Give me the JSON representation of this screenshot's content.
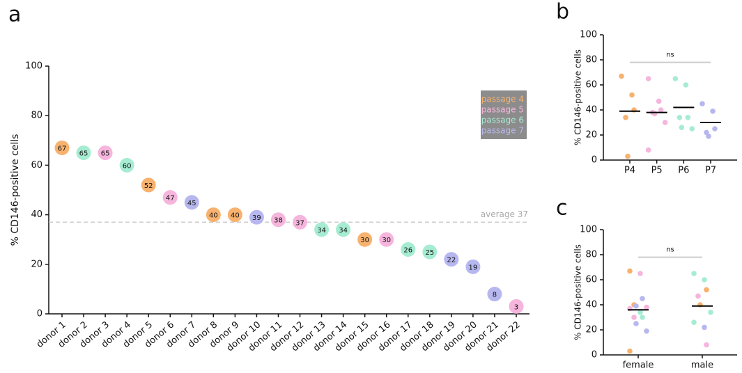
{
  "chart_data": [
    {
      "type": "dot",
      "label": "a",
      "ylabel": "% CD146-positive cells",
      "categories": [
        "donor 1",
        "donor 2",
        "donor 3",
        "donor 4",
        "donor 5",
        "donor 6",
        "donor 7",
        "donor 8",
        "donor 9",
        "donor 10",
        "donor 11",
        "donor 12",
        "donor 13",
        "donor 14",
        "donor 15",
        "donor 16",
        "donor 17",
        "donor 18",
        "donor 19",
        "donor 20",
        "donor 21",
        "donor 22"
      ],
      "series": [
        {
          "name": "passage 4",
          "color": "#f7b26f",
          "values": [
            67,
            null,
            null,
            null,
            52,
            null,
            null,
            40,
            40,
            null,
            null,
            null,
            null,
            null,
            30,
            null,
            null,
            null,
            null,
            null,
            null,
            null
          ]
        },
        {
          "name": "passage 5",
          "color": "#f5b5dc",
          "values": [
            null,
            null,
            65,
            null,
            null,
            47,
            null,
            null,
            null,
            null,
            38,
            37,
            null,
            null,
            null,
            30,
            null,
            null,
            null,
            null,
            null,
            3
          ]
        },
        {
          "name": "passage 6",
          "color": "#a6ecd3",
          "values": [
            null,
            65,
            null,
            60,
            null,
            null,
            null,
            null,
            null,
            null,
            null,
            null,
            34,
            34,
            null,
            null,
            26,
            25,
            null,
            null,
            null,
            null
          ]
        },
        {
          "name": "passage 7",
          "color": "#b7b7f0",
          "values": [
            null,
            null,
            null,
            null,
            null,
            null,
            45,
            null,
            null,
            39,
            null,
            null,
            null,
            null,
            null,
            null,
            null,
            null,
            22,
            19,
            8,
            null
          ]
        }
      ],
      "average": 37,
      "average_label": "average 37",
      "ylim": [
        0,
        100
      ],
      "yticks": [
        0,
        20,
        40,
        60,
        80,
        100
      ]
    },
    {
      "type": "strip",
      "label": "b",
      "ylabel": "% CD146-positive cells",
      "categories": [
        "P4",
        "P5",
        "P6",
        "P7"
      ],
      "points": [
        [
          67,
          52,
          40,
          34,
          3
        ],
        [
          65,
          47,
          40,
          38,
          37,
          30,
          8
        ],
        [
          65,
          60,
          34,
          34,
          26,
          25
        ],
        [
          45,
          39,
          25,
          22,
          19
        ]
      ],
      "point_colors": [
        [
          "#f7b26f",
          "#f7b26f",
          "#f7b26f",
          "#f7b26f",
          "#f7b26f"
        ],
        [
          "#f5b5dc",
          "#f5b5dc",
          "#f5b5dc",
          "#f5b5dc",
          "#f5b5dc",
          "#f5b5dc",
          "#f5b5dc"
        ],
        [
          "#a6ecd3",
          "#a6ecd3",
          "#a6ecd3",
          "#a6ecd3",
          "#a6ecd3",
          "#a6ecd3"
        ],
        [
          "#b7b7f0",
          "#b7b7f0",
          "#b7b7f0",
          "#b7b7f0",
          "#b7b7f0"
        ]
      ],
      "means": [
        39,
        38,
        42,
        30
      ],
      "annotation": "ns",
      "ylim": [
        0,
        100
      ],
      "yticks": [
        0,
        20,
        40,
        60,
        80,
        100
      ]
    },
    {
      "type": "strip",
      "label": "c",
      "ylabel": "% CD146-positive cells",
      "categories": [
        "female",
        "male"
      ],
      "points": [
        [
          67,
          65,
          45,
          40,
          39,
          38,
          37,
          34,
          30,
          30,
          25,
          19,
          3
        ],
        [
          65,
          60,
          52,
          47,
          40,
          34,
          26,
          22,
          8
        ]
      ],
      "point_colors": [
        [
          "#f7b26f",
          "#f5b5dc",
          "#b7b7f0",
          "#f7b26f",
          "#b7b7f0",
          "#f5b5dc",
          "#f5b5dc",
          "#a6ecd3",
          "#a6ecd3",
          "#f5b5dc",
          "#b7b7f0",
          "#b7b7f0",
          "#f7b26f"
        ],
        [
          "#a6ecd3",
          "#a6ecd3",
          "#f7b26f",
          "#f5b5dc",
          "#f7b26f",
          "#a6ecd3",
          "#a6ecd3",
          "#b7b7f0",
          "#f5b5dc"
        ]
      ],
      "means": [
        36,
        39
      ],
      "annotation": "ns",
      "ylim": [
        0,
        100
      ],
      "yticks": [
        0,
        20,
        40,
        60,
        80,
        100
      ]
    }
  ]
}
